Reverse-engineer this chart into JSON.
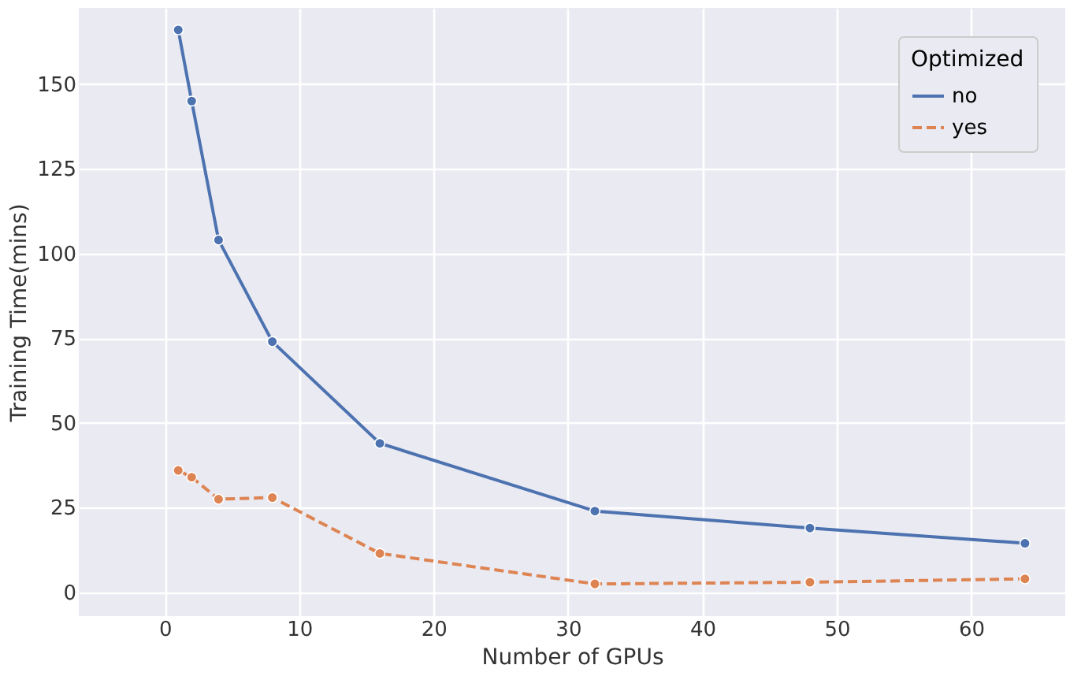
{
  "chart_data": {
    "type": "line",
    "xlabel": "Number of GPUs",
    "ylabel": "Training Time(mins)",
    "legend_title": "Optimized",
    "x": [
      1,
      2,
      4,
      8,
      16,
      32,
      48,
      64
    ],
    "series": [
      {
        "name": "no",
        "color": "#4c72b0",
        "line_style": "solid",
        "values": [
          166,
          145,
          104,
          74,
          44,
          24,
          19,
          14.5
        ]
      },
      {
        "name": "yes",
        "color": "#dd8452",
        "line_style": "dashed",
        "values": [
          36,
          34,
          27.5,
          28,
          11.5,
          2.5,
          3,
          4
        ]
      }
    ],
    "xlim": [
      -6.4,
      67
    ],
    "ylim": [
      -7,
      172.5
    ],
    "xticks": [
      0,
      10,
      20,
      30,
      40,
      50,
      60
    ],
    "yticks": [
      0,
      25,
      50,
      75,
      100,
      125,
      150
    ],
    "grid": true,
    "legend": "top right",
    "marker": "circle"
  }
}
